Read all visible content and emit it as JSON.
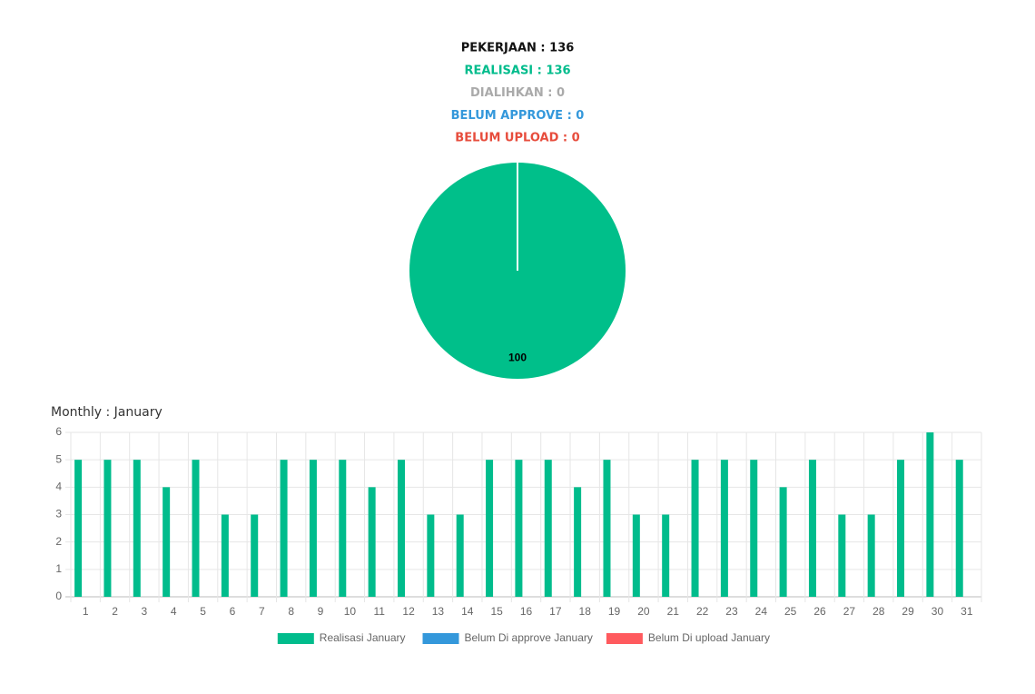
{
  "summary": [
    {
      "text": "PEKERJAAN : 136",
      "color": "#111111"
    },
    {
      "text": "REALISASI : 136",
      "color": "#00bc8c"
    },
    {
      "text": "DIALIHKAN : 0",
      "color": "#aaaaaa"
    },
    {
      "text": "BELUM APPROVE : 0",
      "color": "#3498db"
    },
    {
      "text": "BELUM UPLOAD : 0",
      "color": "#e74c3c"
    }
  ],
  "chart_data": [
    {
      "type": "pie",
      "values": [
        100
      ],
      "colors": [
        "#00bf8a"
      ]
    },
    {
      "type": "bar",
      "title": "Monthly : January",
      "categories": [
        1,
        2,
        3,
        4,
        5,
        6,
        7,
        8,
        9,
        10,
        11,
        12,
        13,
        14,
        15,
        16,
        17,
        18,
        19,
        20,
        21,
        22,
        23,
        24,
        25,
        26,
        27,
        28,
        29,
        30,
        31
      ],
      "series": [
        {
          "name": "Realisasi January",
          "color": "#00bc8c",
          "values": [
            5,
            5,
            5,
            4,
            5,
            3,
            3,
            5,
            5,
            5,
            4,
            5,
            3,
            3,
            5,
            5,
            5,
            4,
            5,
            3,
            3,
            5,
            5,
            5,
            4,
            5,
            3,
            3,
            5,
            6,
            5
          ]
        },
        {
          "name": "Belum Di approve January",
          "color": "#3498db",
          "values": [
            0,
            0,
            0,
            0,
            0,
            0,
            0,
            0,
            0,
            0,
            0,
            0,
            0,
            0,
            0,
            0,
            0,
            0,
            0,
            0,
            0,
            0,
            0,
            0,
            0,
            0,
            0,
            0,
            0,
            0,
            0
          ]
        },
        {
          "name": "Belum Di upload January",
          "color": "#ff5a5e",
          "values": [
            0,
            0,
            0,
            0,
            0,
            0,
            0,
            0,
            0,
            0,
            0,
            0,
            0,
            0,
            0,
            0,
            0,
            0,
            0,
            0,
            0,
            0,
            0,
            0,
            0,
            0,
            0,
            0,
            0,
            0,
            0
          ]
        }
      ],
      "ylim": [
        0,
        6
      ],
      "yticks": [
        0,
        1,
        2,
        3,
        4,
        5,
        6
      ],
      "grid": true,
      "legend": "bottom"
    }
  ]
}
